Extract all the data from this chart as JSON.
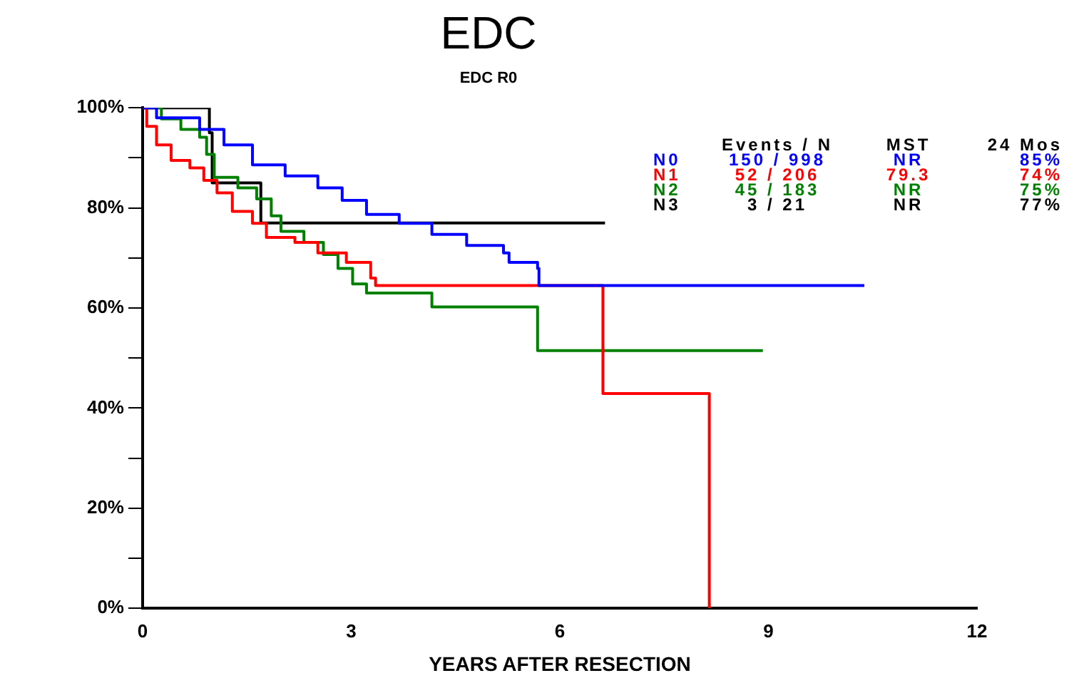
{
  "chart_data": {
    "type": "step",
    "title": "EDC",
    "subtitle": "EDC R0",
    "xlabel": "YEARS AFTER RESECTION",
    "xlim": [
      0,
      12
    ],
    "xticks": [
      0,
      3,
      6,
      9,
      12
    ],
    "ylim": [
      0,
      100
    ],
    "yticks": [
      {
        "value": 0,
        "label": "0%"
      },
      {
        "value": 10,
        "label": null
      },
      {
        "value": 20,
        "label": "20%"
      },
      {
        "value": 30,
        "label": null
      },
      {
        "value": 40,
        "label": "40%"
      },
      {
        "value": 50,
        "label": null
      },
      {
        "value": 60,
        "label": "60%"
      },
      {
        "value": 70,
        "label": null
      },
      {
        "value": 80,
        "label": "80%"
      },
      {
        "value": 90,
        "label": null
      },
      {
        "value": 100,
        "label": "100%"
      }
    ],
    "grid": false,
    "legend": false,
    "marker": "none",
    "line_style": "solid",
    "series": [
      {
        "name": "N0",
        "color": "#0000ff",
        "x": [
          0,
          0.2,
          0.82,
          1.17,
          1.58,
          2.05,
          2.52,
          2.87,
          3.22,
          3.69,
          4.16,
          4.66,
          5.19,
          5.27,
          5.68,
          5.7,
          10.38
        ],
        "values": [
          100,
          98,
          95.7,
          92.6,
          88.6,
          86.4,
          84,
          81.5,
          78.7,
          76.9,
          74.7,
          72.5,
          71,
          69.1,
          67.9,
          64.5,
          64.5
        ]
      },
      {
        "name": "N1",
        "color": "#ff0000",
        "x": [
          0,
          0.06,
          0.2,
          0.41,
          0.68,
          0.88,
          1.07,
          1.29,
          1.58,
          1.78,
          2.19,
          2.52,
          2.93,
          3.28,
          3.35,
          6.62,
          8.15,
          8.15
        ],
        "values": [
          100,
          96.3,
          92.6,
          89.5,
          88,
          85.5,
          83,
          79.3,
          76.9,
          74.1,
          73.1,
          71,
          69.1,
          66,
          64.5,
          42.9,
          42.9,
          0
        ]
      },
      {
        "name": "N2",
        "color": "#008000",
        "x": [
          0,
          0.27,
          0.55,
          0.82,
          0.92,
          1.03,
          1.37,
          1.64,
          1.85,
          1.99,
          2.32,
          2.6,
          2.81,
          3.02,
          3.22,
          4.16,
          5.68,
          8.92
        ],
        "values": [
          100,
          97.8,
          95.7,
          94.1,
          90.7,
          86.1,
          84,
          81.8,
          78.4,
          75.3,
          73.1,
          70.7,
          67.9,
          64.8,
          63,
          60.2,
          51.5,
          51.5
        ]
      },
      {
        "name": "N3",
        "color": "#000000",
        "x": [
          0,
          0.96,
          1.0,
          1.7,
          6.65
        ],
        "values": [
          100,
          95,
          85,
          77,
          77
        ]
      }
    ],
    "annotations": [
      "Events / N",
      "MST",
      "24 Mos",
      "150 / 998",
      "NR",
      "85%",
      "52 / 206",
      "79.3",
      "74%",
      "45 / 183",
      "NR",
      "75%",
      "3 / 21",
      "NR",
      "77%"
    ]
  }
}
